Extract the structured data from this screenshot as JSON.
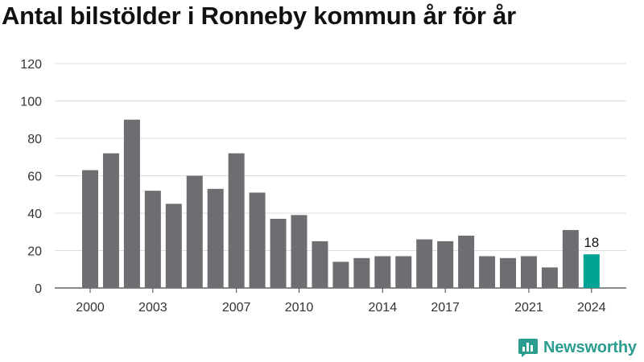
{
  "title": "Antal bilstölder i Ronneby kommun år för år",
  "brand": {
    "name": "Newsworthy",
    "icon": "newsworthy-logo-icon"
  },
  "colors": {
    "bar": "#6e6d72",
    "highlight": "#00a394",
    "grid": "#dddddd",
    "text": "#333333",
    "brand": "#2a9d8f"
  },
  "chart_data": {
    "type": "bar",
    "title": "Antal bilstölder i Ronneby kommun år för år",
    "xlabel": "",
    "ylabel": "",
    "categories": [
      "2000",
      "2001",
      "2002",
      "2003",
      "2004",
      "2005",
      "2006",
      "2007",
      "2008",
      "2009",
      "2010",
      "2011",
      "2012",
      "2013",
      "2014",
      "2015",
      "2016",
      "2017",
      "2018",
      "2019",
      "2020",
      "2021",
      "2022",
      "2023",
      "2024"
    ],
    "values": [
      63,
      72,
      90,
      52,
      45,
      60,
      53,
      72,
      51,
      37,
      39,
      25,
      14,
      16,
      17,
      17,
      26,
      25,
      28,
      17,
      16,
      17,
      11,
      31,
      18
    ],
    "ylim": [
      0,
      120
    ],
    "yticks": [
      0,
      20,
      40,
      60,
      80,
      100,
      120
    ],
    "xticklabels": [
      "2000",
      "2003",
      "2007",
      "2010",
      "2014",
      "2017",
      "2021",
      "2024"
    ],
    "highlight": {
      "category": "2024",
      "label": "18"
    },
    "grid": true,
    "legend": "none"
  }
}
